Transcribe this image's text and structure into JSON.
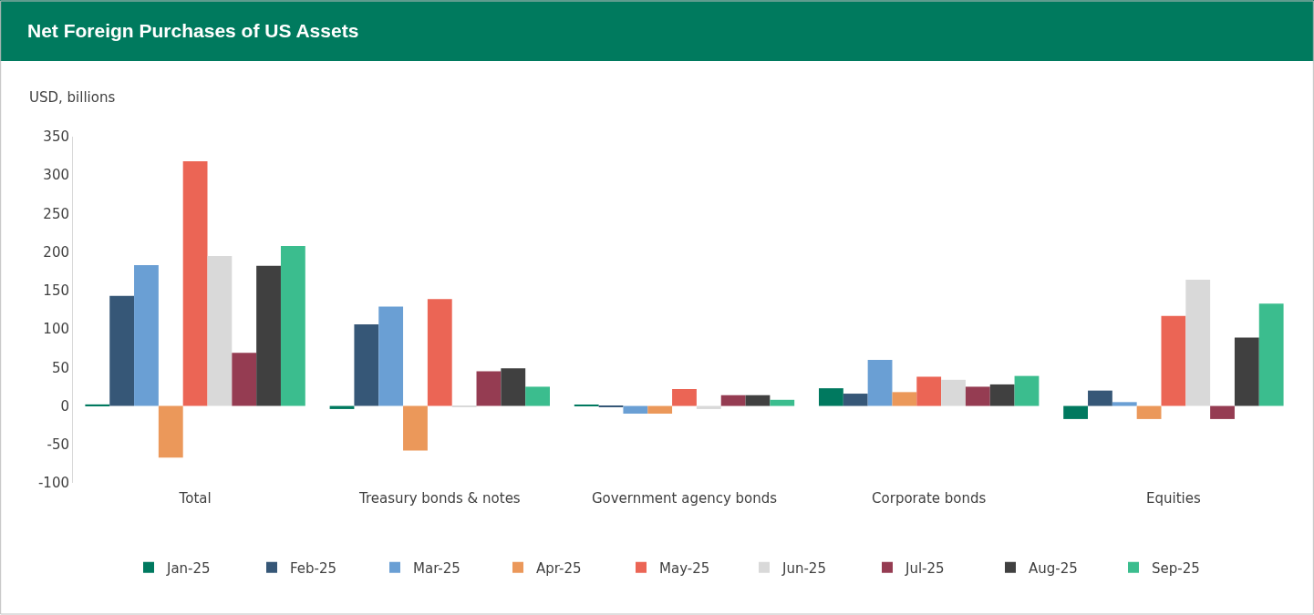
{
  "chart_data": {
    "type": "bar",
    "title": "Net Foreign Purchases of US Assets",
    "ylabel": "USD, billions",
    "categories": [
      "Total",
      "Treasury bonds & notes",
      "Government agency bonds",
      "Corporate bonds",
      "Equities"
    ],
    "series": [
      {
        "name": "Jan-25",
        "color": "#00795f",
        "values": [
          2,
          -4,
          1,
          23,
          -17
        ]
      },
      {
        "name": "Feb-25",
        "color": "#365777",
        "values": [
          143,
          106,
          -1,
          16,
          20
        ]
      },
      {
        "name": "Mar-25",
        "color": "#6a9fd4",
        "values": [
          183,
          129,
          -10,
          60,
          5
        ]
      },
      {
        "name": "Apr-25",
        "color": "#eb985a",
        "values": [
          -67,
          -58,
          -10,
          18,
          -17
        ]
      },
      {
        "name": "May-25",
        "color": "#eb6555",
        "values": [
          318,
          139,
          22,
          38,
          117
        ]
      },
      {
        "name": "Jun-25",
        "color": "#d9d9d9",
        "values": [
          195,
          -1,
          -4,
          34,
          164
        ]
      },
      {
        "name": "Jul-25",
        "color": "#953c52",
        "values": [
          69,
          45,
          14,
          25,
          -17
        ]
      },
      {
        "name": "Aug-25",
        "color": "#404040",
        "values": [
          182,
          49,
          14,
          28,
          89
        ]
      },
      {
        "name": "Sep-25",
        "color": "#3bbd8e",
        "values": [
          208,
          25,
          8,
          39,
          133
        ]
      }
    ],
    "ylim": [
      -100,
      350
    ],
    "yticks": [
      -100,
      -50,
      0,
      50,
      100,
      150,
      200,
      250,
      300,
      350
    ],
    "grid": false,
    "legend": "bottom"
  }
}
